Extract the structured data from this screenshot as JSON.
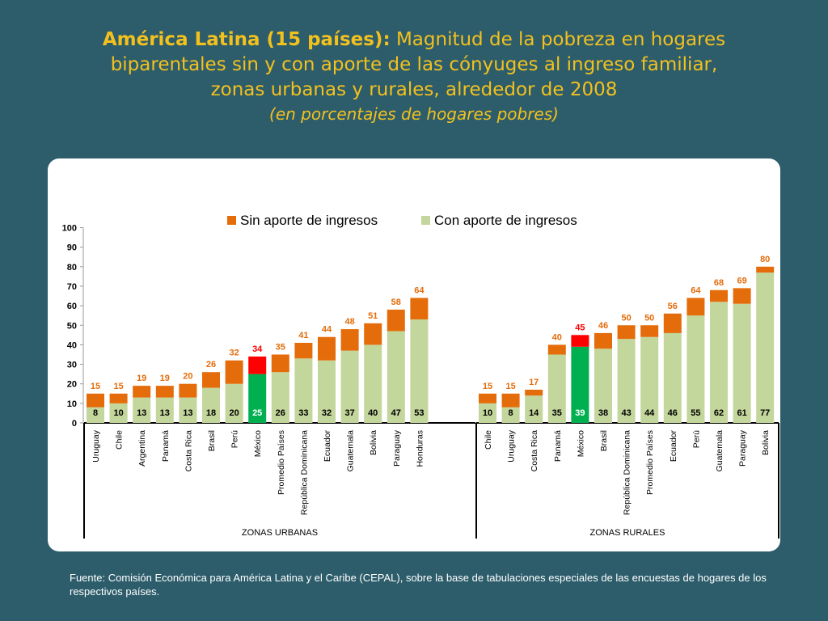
{
  "title": {
    "bold": "América Latina (15 países):",
    "rest": " Magnitud de la pobreza en hogares",
    "line2": "biparentales sin y con aporte de las cónyuges al ingreso familiar,",
    "line3": "zonas urbanas y rurales, alrededor de 2008",
    "subtitle": "(en porcentajes de hogares pobres)"
  },
  "source": {
    "label": "Fuente",
    "text": ": Comisión Económica para América Latina y el Caribe (CEPAL), sobre la base de tabulaciones especiales de las encuestas de hogares de los respectivos países."
  },
  "colors": {
    "background": "#2d5d6b",
    "title": "#f3c11d",
    "sin_aporte": "#e46c0a",
    "con_aporte": "#c3d69b",
    "mexico_sin": "#ff0000",
    "mexico_con": "#00b050",
    "total_label": "#e46c0a",
    "mexico_total_label": "#ff0000"
  },
  "chart_data": {
    "type": "bar",
    "stacked": true,
    "ylim": [
      0,
      100
    ],
    "yticks": [
      0,
      10,
      20,
      30,
      40,
      50,
      60,
      70,
      80,
      90,
      100
    ],
    "grid": false,
    "legend_position": "top",
    "legend": [
      "Sin aporte de ingresos",
      "Con aporte de ingresos"
    ],
    "series": [
      {
        "name": "Sin aporte de ingresos",
        "description": "total minus con aporte"
      },
      {
        "name": "Con aporte de ingresos"
      }
    ],
    "groups": [
      {
        "name": "ZONAS URBANAS",
        "categories": [
          "Uruguay",
          "Chile",
          "Argentina",
          "Panamá",
          "Costa Rica",
          "Brasil",
          "Perú",
          "México",
          "Promedio Países",
          "República Dominicana",
          "Ecuador",
          "Guatemala",
          "Bolivia",
          "Paraguay",
          "Honduras"
        ],
        "con_aporte": [
          8,
          10,
          13,
          13,
          13,
          18,
          20,
          25,
          26,
          33,
          32,
          37,
          40,
          47,
          53
        ],
        "total": [
          15,
          15,
          19,
          19,
          20,
          26,
          32,
          34,
          35,
          41,
          44,
          48,
          51,
          58,
          64
        ]
      },
      {
        "name": "ZONAS RURALES",
        "categories": [
          "Chile",
          "Uruguay",
          "Costa Rica",
          "Panamá",
          "México",
          "Brasil",
          "República Dominicana",
          "Promedio Países",
          "Ecuador",
          "Perú",
          "Guatemala",
          "Paraguay",
          "Bolivia"
        ],
        "con_aporte": [
          10,
          8,
          14,
          35,
          39,
          38,
          43,
          44,
          46,
          55,
          62,
          61,
          77
        ],
        "total": [
          15,
          15,
          17,
          40,
          45,
          46,
          50,
          50,
          56,
          64,
          68,
          69,
          80
        ]
      }
    ],
    "highlight": "México"
  }
}
